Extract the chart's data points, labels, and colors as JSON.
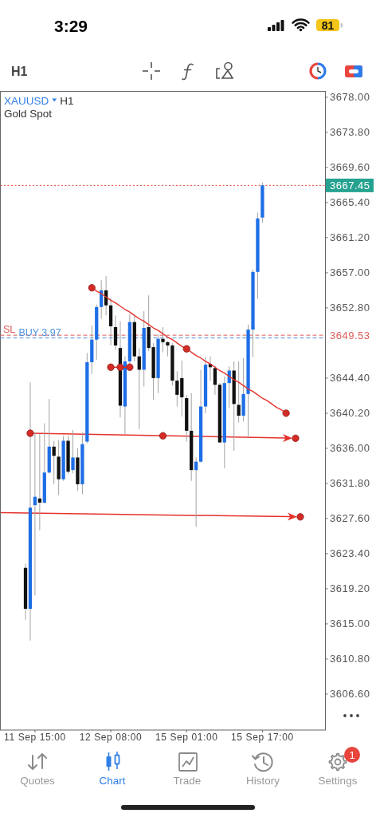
{
  "chart_data": {
    "type": "candlestick",
    "title": "XAUUSD",
    "subtitle": "Gold Spot",
    "categories": [
      null,
      null,
      "11 Sep 15:00",
      null,
      null,
      null,
      null,
      null,
      null,
      null,
      null,
      null,
      null,
      null,
      null,
      null,
      null,
      null,
      "12 Sep 08:00",
      null,
      null,
      null,
      null,
      null,
      null,
      null,
      null,
      null,
      null,
      null,
      null,
      null,
      null,
      null,
      "15 Sep 01:00",
      null,
      null,
      null,
      null,
      null,
      null,
      null,
      null,
      null,
      null,
      null,
      null,
      null,
      null,
      null,
      "15 Sep 17:00",
      null,
      null,
      null,
      null,
      null,
      null,
      null,
      null
    ],
    "ohlc": [
      [
        3621.7,
        3622.2,
        3615.5,
        3616.8
      ],
      [
        3616.8,
        3643.9,
        3613.0,
        3628.9
      ],
      [
        3629.2,
        3637.9,
        3618.4,
        3630.2
      ],
      [
        3630.0,
        3637.7,
        3626.2,
        3629.5
      ],
      [
        3629.5,
        3639.0,
        3629.4,
        3633.1
      ],
      [
        3633.1,
        3641.9,
        3633.0,
        3636.2
      ],
      [
        3636.2,
        3636.9,
        3631.7,
        3635.1
      ],
      [
        3635.0,
        3637.0,
        3630.4,
        3632.3
      ],
      [
        3632.3,
        3637.5,
        3632.1,
        3636.9
      ],
      [
        3636.9,
        3637.5,
        3632.9,
        3633.2
      ],
      [
        3633.4,
        3638.2,
        3633.0,
        3634.9
      ],
      [
        3634.9,
        3636.0,
        3630.9,
        3631.7
      ],
      [
        3631.7,
        3637.9,
        3630.5,
        3636.5
      ],
      [
        3636.8,
        3647.4,
        3636.6,
        3646.3
      ],
      [
        3646.3,
        3650.7,
        3644.9,
        3649.0
      ],
      [
        3649.0,
        3653.2,
        3646.6,
        3652.9
      ],
      [
        3652.9,
        3656.1,
        3651.5,
        3654.9
      ],
      [
        3654.9,
        3656.6,
        3651.9,
        3653.1
      ],
      [
        3653.1,
        3654.0,
        3648.3,
        3650.6
      ],
      [
        3650.5,
        3651.9,
        3647.8,
        3648.3
      ],
      [
        3648.0,
        3651.2,
        3639.7,
        3641.1
      ],
      [
        3641.0,
        3647.0,
        3637.7,
        3646.4
      ],
      [
        3646.4,
        3652.1,
        3645.9,
        3651.1
      ],
      [
        3651.1,
        3651.8,
        3646.4,
        3647.0
      ],
      [
        3647.0,
        3648.0,
        3638.3,
        3645.4
      ],
      [
        3645.4,
        3652.4,
        3643.4,
        3650.4
      ],
      [
        3650.5,
        3654.3,
        3647.6,
        3648.0
      ],
      [
        3648.1,
        3648.6,
        3641.8,
        3644.4
      ],
      [
        3644.4,
        3649.6,
        3642.6,
        3649.1
      ],
      [
        3649.1,
        3650.5,
        3647.5,
        3648.7
      ],
      [
        3648.7,
        3648.8,
        3647.0,
        3648.3
      ],
      [
        3648.3,
        3648.6,
        3643.5,
        3644.1
      ],
      [
        3644.1,
        3645.2,
        3641.0,
        3642.4
      ],
      [
        3644.4,
        3646.5,
        3639.8,
        3642.1
      ],
      [
        3642.0,
        3642.4,
        3636.8,
        3638.1
      ],
      [
        3638.1,
        3642.6,
        3632.1,
        3633.4
      ],
      [
        3633.4,
        3634.9,
        3626.6,
        3634.4
      ],
      [
        3634.4,
        3645.4,
        3634.3,
        3641.0
      ],
      [
        3641.0,
        3646.9,
        3640.2,
        3646.0
      ],
      [
        3646.1,
        3647.0,
        3644.1,
        3645.7
      ],
      [
        3645.6,
        3645.9,
        3642.4,
        3643.6
      ],
      [
        3643.6,
        3643.8,
        3636.7,
        3636.7
      ],
      [
        3636.7,
        3644.6,
        3633.6,
        3643.8
      ],
      [
        3643.8,
        3645.8,
        3640.8,
        3645.3
      ],
      [
        3645.3,
        3646.4,
        3635.7,
        3641.3
      ],
      [
        3641.2,
        3646.4,
        3639.1,
        3639.9
      ],
      [
        3639.9,
        3646.8,
        3639.2,
        3642.5
      ],
      [
        3642.5,
        3650.8,
        3637.3,
        3650.2
      ],
      [
        3650.2,
        3657.4,
        3646.9,
        3657.1
      ],
      [
        3657.1,
        3664.2,
        3653.9,
        3663.5
      ],
      [
        3663.6,
        3667.8,
        3663.0,
        3667.45
      ],
      null,
      null,
      null,
      null,
      null,
      null,
      null,
      null
    ],
    "colors": [
      "#111111",
      "#1e6ee6",
      "#1e6ee6",
      "#111111",
      "#1e6ee6",
      "#1e6ee6",
      "#111111",
      "#111111",
      "#1e6ee6",
      "#111111",
      "#1e6ee6",
      "#111111",
      "#1e6ee6",
      "#1e6ee6",
      "#1e6ee6",
      "#1e6ee6",
      "#1e6ee6",
      "#111111",
      "#111111",
      "#111111",
      "#111111",
      "#1e6ee6",
      "#1e6ee6",
      "#111111",
      "#111111",
      "#1e6ee6",
      "#111111",
      "#111111",
      "#1e6ee6",
      "#111111",
      "#111111",
      "#111111",
      "#111111",
      "#111111",
      "#111111",
      "#111111",
      "#1e6ee6",
      "#1e6ee6",
      "#1e6ee6",
      "#111111",
      "#111111",
      "#111111",
      "#1e6ee6",
      "#1e6ee6",
      "#111111",
      "#111111",
      "#1e6ee6",
      "#1e6ee6",
      "#1e6ee6",
      "#1e6ee6",
      "#1e6ee6",
      null,
      null,
      null,
      null,
      null,
      null,
      null,
      null
    ],
    "series": [
      {
        "type": "line",
        "color": "#e5322d",
        "values": [
          null,
          null,
          null,
          null,
          null,
          null,
          null,
          null,
          null,
          null,
          null,
          null,
          null,
          null,
          3655.2,
          3654.8,
          3654.5,
          3654.1,
          3653.7,
          3653.4,
          3653.0,
          3652.6,
          3652.3,
          3651.9,
          3651.5,
          3651.2,
          3650.8,
          3650.4,
          3650.1,
          3649.7,
          3649.3,
          3649.0,
          3648.6,
          3648.2,
          3647.9,
          3647.5,
          3647.1,
          3646.8,
          3646.4,
          3646.1,
          3645.7,
          3645.3,
          3645.0,
          3644.6,
          3644.2,
          3643.9,
          3643.5,
          3643.1,
          3642.8,
          3642.4,
          3642.0,
          3641.7,
          3641.3,
          3640.9,
          3640.6,
          3640.2,
          null,
          null,
          null
        ]
      },
      {
        "type": "line",
        "color": "#e5322d",
        "values": [
          null,
          null,
          null,
          null,
          null,
          null,
          null,
          null,
          null,
          null,
          null,
          null,
          null,
          null,
          null,
          null,
          null,
          null,
          3645.7,
          3645.7,
          3645.7,
          3645.7,
          3645.7,
          null,
          null,
          null,
          null,
          null,
          null,
          null,
          null,
          null,
          null,
          null,
          null,
          null,
          null,
          null,
          null,
          null,
          null,
          null,
          null,
          null,
          null,
          null,
          null,
          null,
          null,
          null,
          null,
          null,
          null,
          null,
          null,
          null,
          null,
          null,
          null
        ]
      },
      {
        "type": "scatter",
        "color": "#d42b26",
        "marker": "circle",
        "values": [
          null,
          3637.8,
          null,
          null,
          null,
          null,
          null,
          null,
          null,
          null,
          null,
          null,
          null,
          null,
          3655.2,
          null,
          null,
          null,
          3645.7,
          null,
          3645.7,
          null,
          3645.7,
          null,
          null,
          null,
          null,
          null,
          null,
          3637.5,
          null,
          null,
          null,
          null,
          3647.9,
          null,
          null,
          null,
          null,
          null,
          null,
          null,
          null,
          null,
          null,
          null,
          null,
          null,
          null,
          null,
          null,
          null,
          null,
          null,
          null,
          3640.2,
          null,
          3637.2,
          3627.8
        ]
      }
    ],
    "ylim": [
      3602.3,
      3678.7
    ],
    "yticks": [
      {
        "value": 3606.6,
        "label": "3606.60"
      },
      {
        "value": 3610.8,
        "label": "3610.80"
      },
      {
        "value": 3615,
        "label": "3615.00"
      },
      {
        "value": 3619.2,
        "label": "3619.20"
      },
      {
        "value": 3623.4,
        "label": "3623.40"
      },
      {
        "value": 3627.6,
        "label": "3627.60"
      },
      {
        "value": 3631.8,
        "label": "3631.80"
      },
      {
        "value": 3636,
        "label": "3636.00"
      },
      {
        "value": 3640.2,
        "label": "3640.20"
      },
      {
        "value": 3644.4,
        "label": "3644.40"
      },
      {
        "value": 3652.8,
        "label": "3652.80"
      },
      {
        "value": 3657,
        "label": "3657.00"
      },
      {
        "value": 3661.2,
        "label": "3661.20"
      },
      {
        "value": 3665.4,
        "label": "3665.40"
      },
      {
        "value": 3669.6,
        "label": "3669.60"
      },
      {
        "value": 3673.8,
        "label": "3673.80"
      },
      {
        "value": 3678,
        "label": "3678.00"
      }
    ],
    "ref_lines": [
      {
        "axis": "y",
        "value": 3667.45,
        "color": "#e0443b",
        "line_style": "dotted"
      },
      {
        "axis": "y",
        "value": 3649.53,
        "label": "SL",
        "color": "#dc5c58",
        "line_style": "dashed"
      },
      {
        "axis": "y",
        "value": 3649.2,
        "label": "BUY 3.97",
        "color": "#4d92e0",
        "line_style": "dashed"
      }
    ],
    "annotations": [
      "3667.45",
      "3649.53",
      "H1",
      "H1",
      "3:29",
      "81",
      "Quotes",
      "Chart",
      "Trade",
      "History",
      "Settings",
      "1"
    ]
  }
}
